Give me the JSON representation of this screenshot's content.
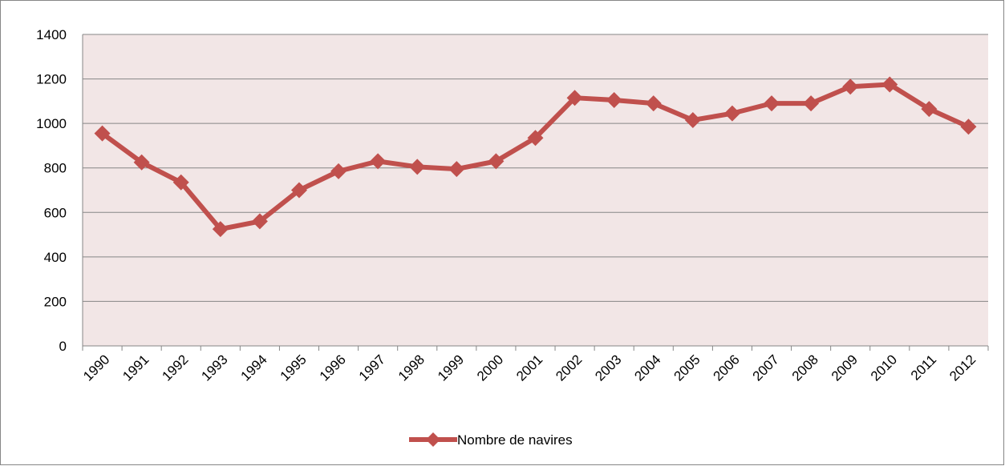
{
  "chart_data": {
    "type": "line",
    "categories": [
      "1990",
      "1991",
      "1992",
      "1993",
      "1994",
      "1995",
      "1996",
      "1997",
      "1998",
      "1999",
      "2000",
      "2001",
      "2002",
      "2003",
      "2004",
      "2005",
      "2006",
      "2007",
      "2008",
      "2009",
      "2010",
      "2011",
      "2012"
    ],
    "series": [
      {
        "name": "Nombre de navires",
        "color": "#c0504d",
        "values": [
          955,
          825,
          735,
          525,
          560,
          700,
          785,
          830,
          805,
          795,
          830,
          935,
          1115,
          1105,
          1090,
          1015,
          1045,
          1090,
          1090,
          1165,
          1175,
          1065,
          985
        ]
      }
    ],
    "ylim": [
      0,
      1400
    ],
    "yticks": [
      0,
      200,
      400,
      600,
      800,
      1000,
      1200,
      1400
    ],
    "grid": true,
    "legend": "bottom"
  }
}
